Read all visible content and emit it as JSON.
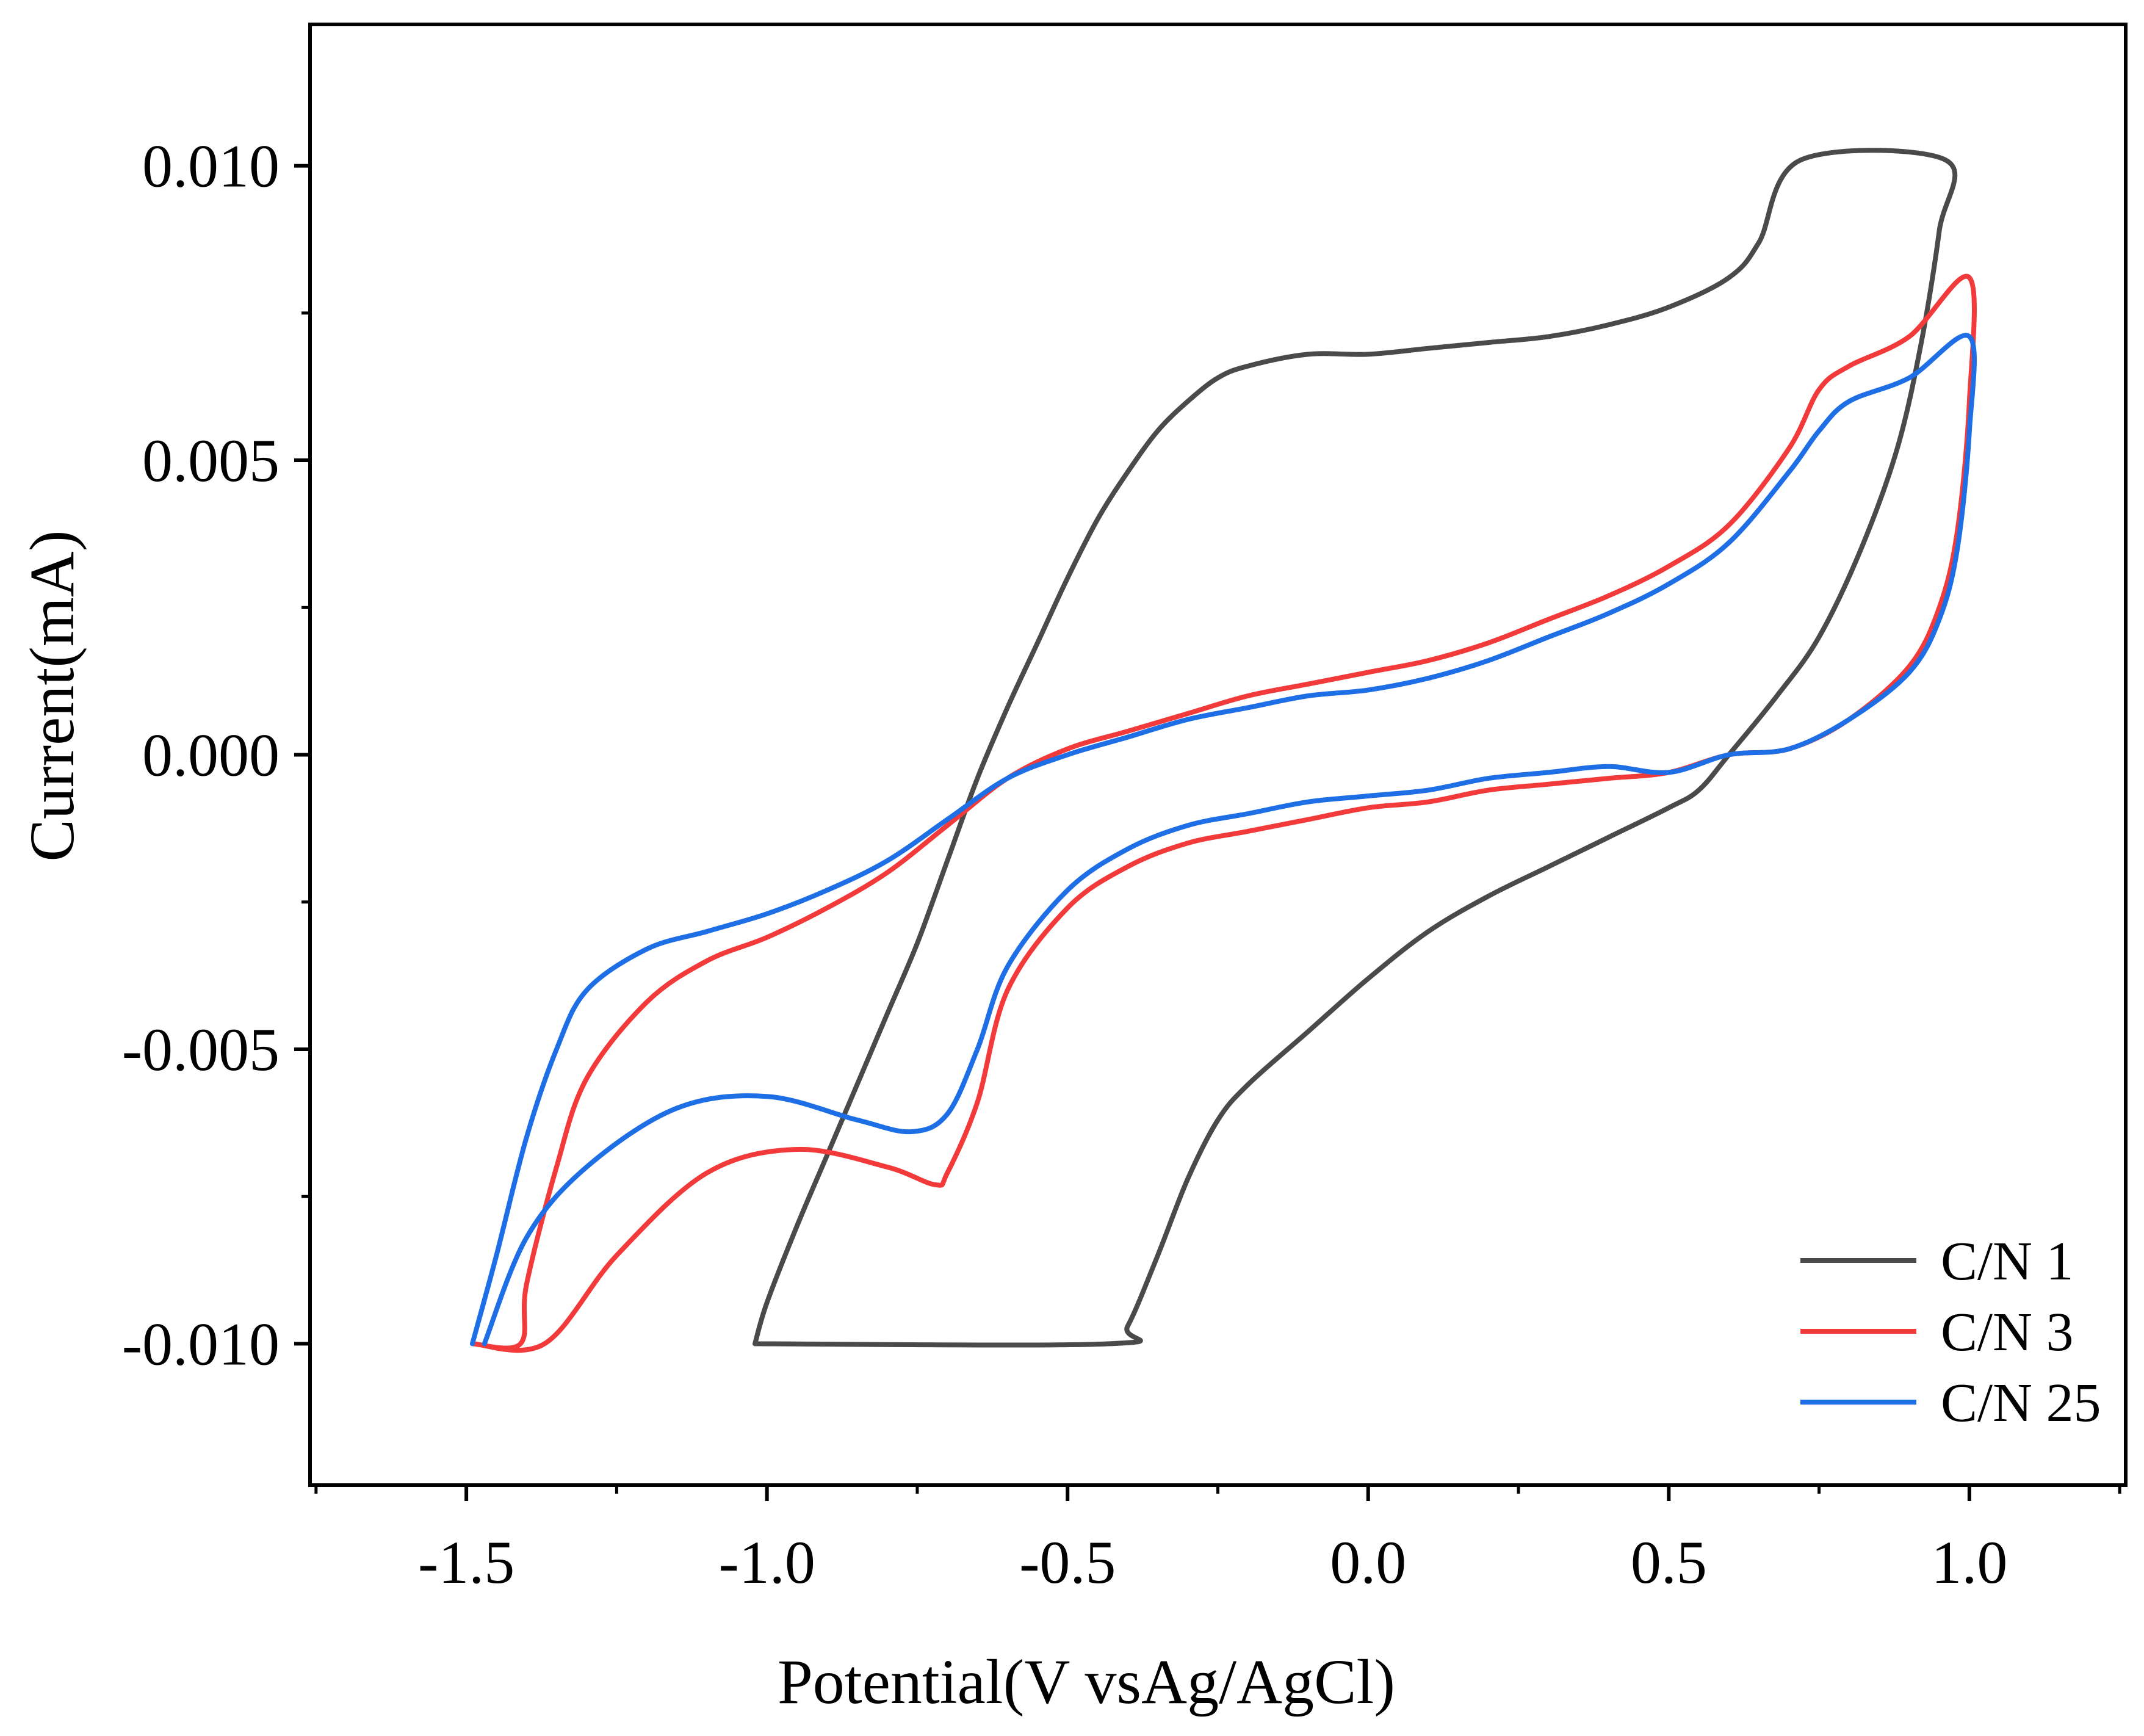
{
  "chart_data": {
    "type": "line",
    "title": "",
    "xlabel": "Potential(V vsAg/AgCl)",
    "ylabel": "Current(mA)",
    "xlim": [
      -1.76,
      1.26
    ],
    "ylim": [
      -0.0124,
      0.0124
    ],
    "xticks": [
      -1.5,
      -1.0,
      -0.5,
      0.0,
      0.5,
      1.0
    ],
    "xtick_labels": [
      "-1.5",
      "-1.0",
      "-0.5",
      "0.0",
      "0.5",
      "1.0"
    ],
    "yticks": [
      -0.01,
      -0.005,
      0.0,
      0.005,
      0.01
    ],
    "ytick_labels": [
      "-0.010",
      "-0.005",
      "0.000",
      "0.005",
      "0.010"
    ],
    "grid": false,
    "legend_position": "bottom-right",
    "series": [
      {
        "name": "C/N 1",
        "color": "#4a4a4a",
        "points": [
          [
            -1.02,
            -0.01
          ],
          [
            -1.0,
            -0.0093
          ],
          [
            -0.95,
            -0.008
          ],
          [
            -0.9,
            -0.0068
          ],
          [
            -0.85,
            -0.0056
          ],
          [
            -0.8,
            -0.0044
          ],
          [
            -0.75,
            -0.0032
          ],
          [
            -0.7,
            -0.0018
          ],
          [
            -0.65,
            -0.0004
          ],
          [
            -0.6,
            0.0008
          ],
          [
            -0.55,
            0.0019
          ],
          [
            -0.5,
            0.003
          ],
          [
            -0.45,
            0.004
          ],
          [
            -0.4,
            0.0048
          ],
          [
            -0.35,
            0.0055
          ],
          [
            -0.3,
            0.006
          ],
          [
            -0.25,
            0.0064
          ],
          [
            -0.2,
            0.0066
          ],
          [
            -0.1,
            0.0068
          ],
          [
            0.0,
            0.0068
          ],
          [
            0.1,
            0.0069
          ],
          [
            0.2,
            0.007
          ],
          [
            0.3,
            0.0071
          ],
          [
            0.4,
            0.0073
          ],
          [
            0.5,
            0.0076
          ],
          [
            0.6,
            0.0081
          ],
          [
            0.65,
            0.0087
          ],
          [
            0.72,
            0.0101
          ],
          [
            0.96,
            0.0101
          ],
          [
            0.95,
            0.0089
          ],
          [
            0.92,
            0.007
          ],
          [
            0.88,
            0.0052
          ],
          [
            0.82,
            0.0035
          ],
          [
            0.75,
            0.002
          ],
          [
            0.68,
            0.001
          ],
          [
            0.6,
            0.0
          ],
          [
            0.55,
            -0.0006
          ],
          [
            0.5,
            -0.0009
          ],
          [
            0.4,
            -0.0014
          ],
          [
            0.3,
            -0.0019
          ],
          [
            0.2,
            -0.0024
          ],
          [
            0.1,
            -0.003
          ],
          [
            0.0,
            -0.0038
          ],
          [
            -0.1,
            -0.0047
          ],
          [
            -0.2,
            -0.0056
          ],
          [
            -0.25,
            -0.0062
          ],
          [
            -0.3,
            -0.0072
          ],
          [
            -0.35,
            -0.0085
          ],
          [
            -0.4,
            -0.0097
          ],
          [
            -0.43,
            -0.01
          ],
          [
            -1.02,
            -0.01
          ]
        ]
      },
      {
        "name": "C/N 3",
        "color": "#f33a3a",
        "points": [
          [
            -1.49,
            -0.01
          ],
          [
            -1.41,
            -0.01
          ],
          [
            -1.4,
            -0.009
          ],
          [
            -1.35,
            -0.007
          ],
          [
            -1.3,
            -0.0055
          ],
          [
            -1.2,
            -0.0042
          ],
          [
            -1.1,
            -0.0035
          ],
          [
            -1.0,
            -0.0031
          ],
          [
            -0.9,
            -0.0026
          ],
          [
            -0.8,
            -0.002
          ],
          [
            -0.7,
            -0.0012
          ],
          [
            -0.6,
            -0.0004
          ],
          [
            -0.5,
            0.0001
          ],
          [
            -0.4,
            0.0004
          ],
          [
            -0.3,
            0.0007
          ],
          [
            -0.2,
            0.001
          ],
          [
            -0.1,
            0.0012
          ],
          [
            0.0,
            0.0014
          ],
          [
            0.1,
            0.0016
          ],
          [
            0.2,
            0.0019
          ],
          [
            0.3,
            0.0023
          ],
          [
            0.4,
            0.0027
          ],
          [
            0.5,
            0.0032
          ],
          [
            0.6,
            0.0039
          ],
          [
            0.7,
            0.0052
          ],
          [
            0.75,
            0.0062
          ],
          [
            0.8,
            0.0066
          ],
          [
            0.9,
            0.0071
          ],
          [
            1.0,
            0.0081
          ],
          [
            1.0,
            0.006
          ],
          [
            0.98,
            0.0038
          ],
          [
            0.95,
            0.0025
          ],
          [
            0.9,
            0.0015
          ],
          [
            0.8,
            0.0006
          ],
          [
            0.7,
            0.0001
          ],
          [
            0.6,
            0.0
          ],
          [
            0.5,
            -0.0003
          ],
          [
            0.4,
            -0.0004
          ],
          [
            0.3,
            -0.0005
          ],
          [
            0.2,
            -0.0006
          ],
          [
            0.1,
            -0.0008
          ],
          [
            0.0,
            -0.0009
          ],
          [
            -0.1,
            -0.0011
          ],
          [
            -0.2,
            -0.0013
          ],
          [
            -0.3,
            -0.0015
          ],
          [
            -0.4,
            -0.0019
          ],
          [
            -0.5,
            -0.0026
          ],
          [
            -0.6,
            -0.004
          ],
          [
            -0.65,
            -0.0059
          ],
          [
            -0.7,
            -0.0071
          ],
          [
            -0.72,
            -0.0073
          ],
          [
            -0.8,
            -0.007
          ],
          [
            -0.95,
            -0.0067
          ],
          [
            -1.1,
            -0.0071
          ],
          [
            -1.25,
            -0.0085
          ],
          [
            -1.37,
            -0.01
          ],
          [
            -1.49,
            -0.01
          ]
        ]
      },
      {
        "name": "C/N 25",
        "color": "#1e6fe6",
        "points": [
          [
            -1.49,
            -0.01
          ],
          [
            -1.45,
            -0.0085
          ],
          [
            -1.4,
            -0.0065
          ],
          [
            -1.35,
            -0.005
          ],
          [
            -1.3,
            -0.004
          ],
          [
            -1.2,
            -0.0033
          ],
          [
            -1.1,
            -0.003
          ],
          [
            -1.0,
            -0.0027
          ],
          [
            -0.9,
            -0.0023
          ],
          [
            -0.8,
            -0.0018
          ],
          [
            -0.7,
            -0.0011
          ],
          [
            -0.6,
            -0.0004
          ],
          [
            -0.5,
            0.0
          ],
          [
            -0.4,
            0.0003
          ],
          [
            -0.3,
            0.0006
          ],
          [
            -0.2,
            0.0008
          ],
          [
            -0.1,
            0.001
          ],
          [
            0.0,
            0.0011
          ],
          [
            0.1,
            0.0013
          ],
          [
            0.2,
            0.0016
          ],
          [
            0.3,
            0.002
          ],
          [
            0.4,
            0.0024
          ],
          [
            0.5,
            0.0029
          ],
          [
            0.6,
            0.0036
          ],
          [
            0.7,
            0.0048
          ],
          [
            0.75,
            0.0055
          ],
          [
            0.8,
            0.006
          ],
          [
            0.9,
            0.0064
          ],
          [
            1.0,
            0.0071
          ],
          [
            1.0,
            0.0055
          ],
          [
            0.98,
            0.0035
          ],
          [
            0.95,
            0.0023
          ],
          [
            0.9,
            0.0014
          ],
          [
            0.8,
            0.0006
          ],
          [
            0.7,
            0.0001
          ],
          [
            0.6,
            0.0
          ],
          [
            0.5,
            -0.0003
          ],
          [
            0.4,
            -0.0002
          ],
          [
            0.3,
            -0.0003
          ],
          [
            0.2,
            -0.0004
          ],
          [
            0.1,
            -0.0006
          ],
          [
            0.0,
            -0.0007
          ],
          [
            -0.1,
            -0.0008
          ],
          [
            -0.2,
            -0.001
          ],
          [
            -0.3,
            -0.0012
          ],
          [
            -0.4,
            -0.0016
          ],
          [
            -0.5,
            -0.0023
          ],
          [
            -0.6,
            -0.0036
          ],
          [
            -0.65,
            -0.005
          ],
          [
            -0.7,
            -0.0061
          ],
          [
            -0.76,
            -0.0064
          ],
          [
            -0.85,
            -0.0062
          ],
          [
            -1.0,
            -0.0058
          ],
          [
            -1.15,
            -0.006
          ],
          [
            -1.3,
            -0.007
          ],
          [
            -1.4,
            -0.0082
          ],
          [
            -1.47,
            -0.01
          ]
        ]
      }
    ]
  }
}
